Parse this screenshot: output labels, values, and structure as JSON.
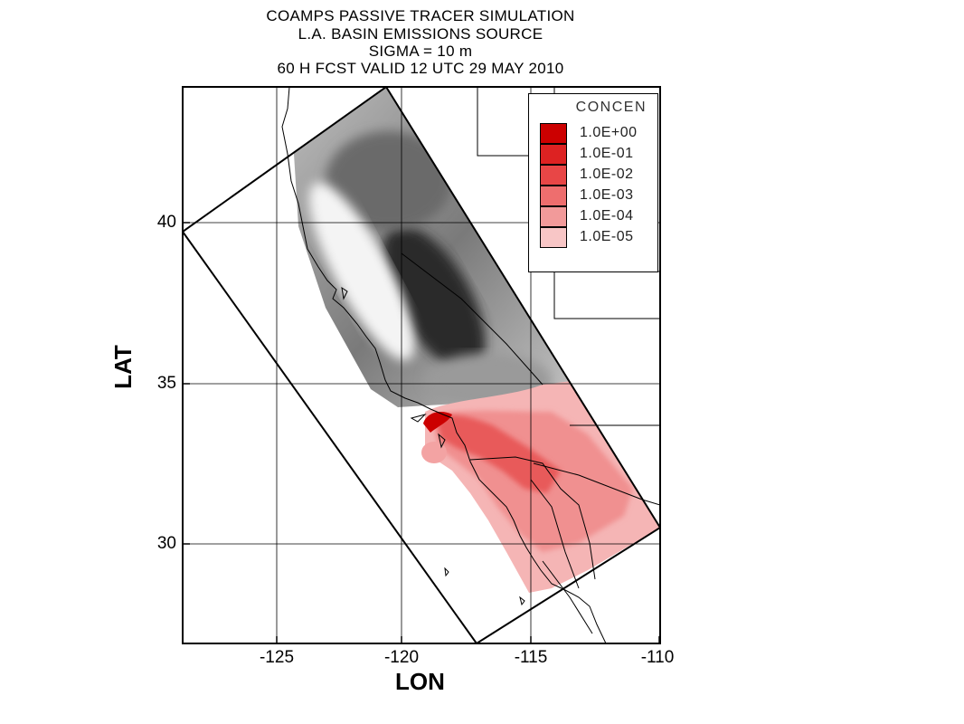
{
  "title_lines": [
    "COAMPS PASSIVE TRACER SIMULATION",
    "L.A. BASIN EMISSIONS SOURCE",
    "SIGMA = 10 m",
    "60 H FCST VALID 12 UTC 29 MAY 2010"
  ],
  "axes": {
    "x_title": "LON",
    "y_title": "LAT",
    "x_ticks": [
      "-125",
      "-120",
      "-115",
      "-110"
    ],
    "y_ticks": [
      "40",
      "35",
      "30"
    ],
    "x_range": [
      -128.5,
      -110
    ],
    "y_range": [
      26.8,
      44.2
    ]
  },
  "legend": {
    "title": "CONCEN",
    "entries": [
      {
        "label": "1.0E+00",
        "color": "#cc0000"
      },
      {
        "label": "1.0E-01",
        "color": "#dd2222"
      },
      {
        "label": "1.0E-02",
        "color": "#e84646"
      },
      {
        "label": "1.0E-03",
        "color": "#ee6e6e"
      },
      {
        "label": "1.0E-04",
        "color": "#f29a9a"
      },
      {
        "label": "1.0E-05",
        "color": "#f8c6c6"
      }
    ]
  },
  "colors": {
    "terrain_dark": "#1a1a1a",
    "terrain_light": "#e6e6e6",
    "plume_light": "#f3a3a3",
    "plume_dark": "#cc0000"
  }
}
